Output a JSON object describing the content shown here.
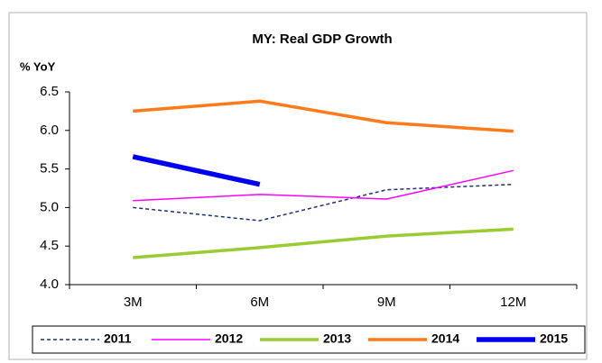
{
  "chart_data": {
    "type": "line",
    "title": "MY: Real GDP Growth",
    "y_label": "% YoY",
    "categories": [
      "3M",
      "6M",
      "9M",
      "12M"
    ],
    "series": [
      {
        "name": "2011",
        "color": "#1f2f7a",
        "dashed": true,
        "line_width": 1.5,
        "values": [
          5.0,
          4.83,
          5.23,
          5.3
        ]
      },
      {
        "name": "2012",
        "color": "#ff00ff",
        "dashed": false,
        "line_width": 1.5,
        "values": [
          5.09,
          5.17,
          5.11,
          5.48
        ]
      },
      {
        "name": "2013",
        "color": "#99cc33",
        "dashed": false,
        "line_width": 3.5,
        "values": [
          4.35,
          4.48,
          4.63,
          4.72
        ]
      },
      {
        "name": "2014",
        "color": "#ff7a1a",
        "dashed": false,
        "line_width": 3.5,
        "values": [
          6.25,
          6.38,
          6.1,
          5.99
        ]
      },
      {
        "name": "2015",
        "color": "#0000ee",
        "dashed": false,
        "line_width": 5.5,
        "values": [
          5.66,
          5.3,
          null,
          null
        ]
      }
    ],
    "ylim": [
      4.0,
      6.5
    ],
    "yticks": [
      {
        "value": 4.0,
        "label": "4.0"
      },
      {
        "value": 4.5,
        "label": "4.5"
      },
      {
        "value": 5.0,
        "label": "5.0"
      },
      {
        "value": 5.5,
        "label": "5.5"
      },
      {
        "value": 6.0,
        "label": "6.0"
      },
      {
        "value": 6.5,
        "label": "6.5"
      }
    ],
    "grid": false,
    "legend": "bottom"
  }
}
